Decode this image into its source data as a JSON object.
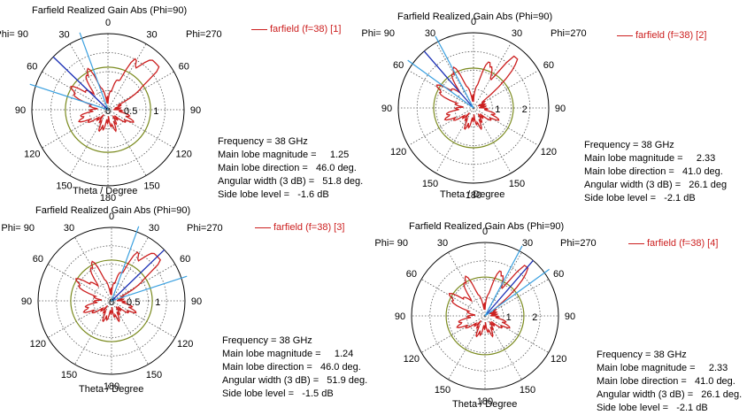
{
  "chart_data": [
    {
      "type": "polar",
      "title": "Farfield Realized Gain Abs (Phi=90)",
      "legend": "farfield (f=38) [1]",
      "xlabel": "Theta / Degree",
      "phi_left_label": "Phi= 90",
      "phi_right_label": "Phi=270",
      "angle_labels": [
        "0",
        "30",
        "60",
        "90",
        "120",
        "150",
        "180",
        "150",
        "120",
        "90",
        "60",
        "30"
      ],
      "radial_ticks": [
        "0",
        "0.5",
        "1"
      ],
      "rmax": 1.5,
      "radial_tick_values": [
        0,
        0.5,
        1
      ],
      "main_lobe_magnitude": 1.25,
      "main_lobe_direction_deg": 46.0,
      "angular_width_deg": 51.8,
      "side_lobe_level_db": -1.6,
      "info": {
        "frequency": "Frequency = 38 GHz",
        "magnitude": "Main lobe magnitude =     1.25",
        "direction": "Main lobe direction =   46.0 deg.",
        "width": "Angular width (3 dB) =   51.8 deg.",
        "sidelobe": "Side lobe level =   -1.6 dB"
      },
      "colors": {
        "pattern": "#cc1f1f",
        "threedb": "#7a8a1e",
        "mainlobe": "#1a2fb5",
        "beamwidth": "#3aa0e0"
      }
    },
    {
      "type": "polar",
      "title": "Farfield Realized Gain Abs (Phi=90)",
      "legend": "farfield (f=38) [2]",
      "xlabel": "Theta / Degree",
      "phi_left_label": "Phi= 90",
      "phi_right_label": "Phi=270",
      "angle_labels": [
        "0",
        "30",
        "60",
        "90",
        "120",
        "150",
        "180",
        "150",
        "120",
        "90",
        "60",
        "30"
      ],
      "radial_ticks": [
        "1",
        "2"
      ],
      "rmax": 2.8,
      "radial_tick_values": [
        1,
        2
      ],
      "main_lobe_magnitude": 2.33,
      "main_lobe_direction_deg": 41.0,
      "angular_width_deg": 26.1,
      "side_lobe_level_db": -2.1,
      "info": {
        "frequency": "Frequency = 38 GHz",
        "magnitude": "Main lobe magnitude =     2.33",
        "direction": "Main lobe direction =   41.0 deg.",
        "width": "Angular width (3 dB) =   26.1 deg",
        "sidelobe": "Side lobe level =   -2.1 dB"
      },
      "colors": {
        "pattern": "#cc1f1f",
        "threedb": "#7a8a1e",
        "mainlobe": "#1a2fb5",
        "beamwidth": "#3aa0e0"
      }
    },
    {
      "type": "polar",
      "title": "Farfield Realized Gain Abs (Phi=90)",
      "legend": "farfield (f=38) [3]",
      "xlabel": "Theta / Degree",
      "phi_left_label": "Phi= 90",
      "phi_right_label": "Phi=270",
      "angle_labels": [
        "0",
        "30",
        "60",
        "90",
        "120",
        "150",
        "180",
        "150",
        "120",
        "90",
        "60",
        "30"
      ],
      "radial_ticks": [
        "0",
        "0.5",
        "1"
      ],
      "rmax": 1.5,
      "radial_tick_values": [
        0,
        0.5,
        1
      ],
      "main_lobe_magnitude": 1.24,
      "main_lobe_direction_deg": 46.0,
      "angular_width_deg": 51.9,
      "side_lobe_level_db": -1.5,
      "info": {
        "frequency": "Frequency = 38 GHz",
        "magnitude": "Main lobe magnitude =     1.24",
        "direction": "Main lobe direction =   46.0 deg.",
        "width": "Angular width (3 dB) =   51.9 deg.",
        "sidelobe": "Side lobe level =   -1.5 dB"
      },
      "colors": {
        "pattern": "#cc1f1f",
        "threedb": "#7a8a1e",
        "mainlobe": "#1a2fb5",
        "beamwidth": "#3aa0e0"
      }
    },
    {
      "type": "polar",
      "title": "Farfield Realized Gain Abs (Phi=90)",
      "legend": "farfield (f=38) [4]",
      "xlabel": "Theta / Degree",
      "phi_left_label": "Phi= 90",
      "phi_right_label": "Phi=270",
      "angle_labels": [
        "0",
        "30",
        "60",
        "90",
        "120",
        "150",
        "180",
        "150",
        "120",
        "90",
        "60",
        "30"
      ],
      "radial_ticks": [
        "1",
        "2"
      ],
      "rmax": 2.8,
      "radial_tick_values": [
        1,
        2
      ],
      "main_lobe_magnitude": 2.33,
      "main_lobe_direction_deg": 41.0,
      "angular_width_deg": 26.1,
      "side_lobe_level_db": -2.1,
      "info": {
        "frequency": "Frequency = 38 GHz",
        "magnitude": "Main lobe magnitude =     2.33",
        "direction": "Main lobe direction =   41.0 deg.",
        "width": "Angular width (3 dB) =   26.1 deg.",
        "sidelobe": "Side lobe level =   -2.1 dB"
      },
      "colors": {
        "pattern": "#cc1f1f",
        "threedb": "#7a8a1e",
        "mainlobe": "#1a2fb5",
        "beamwidth": "#3aa0e0"
      }
    }
  ]
}
